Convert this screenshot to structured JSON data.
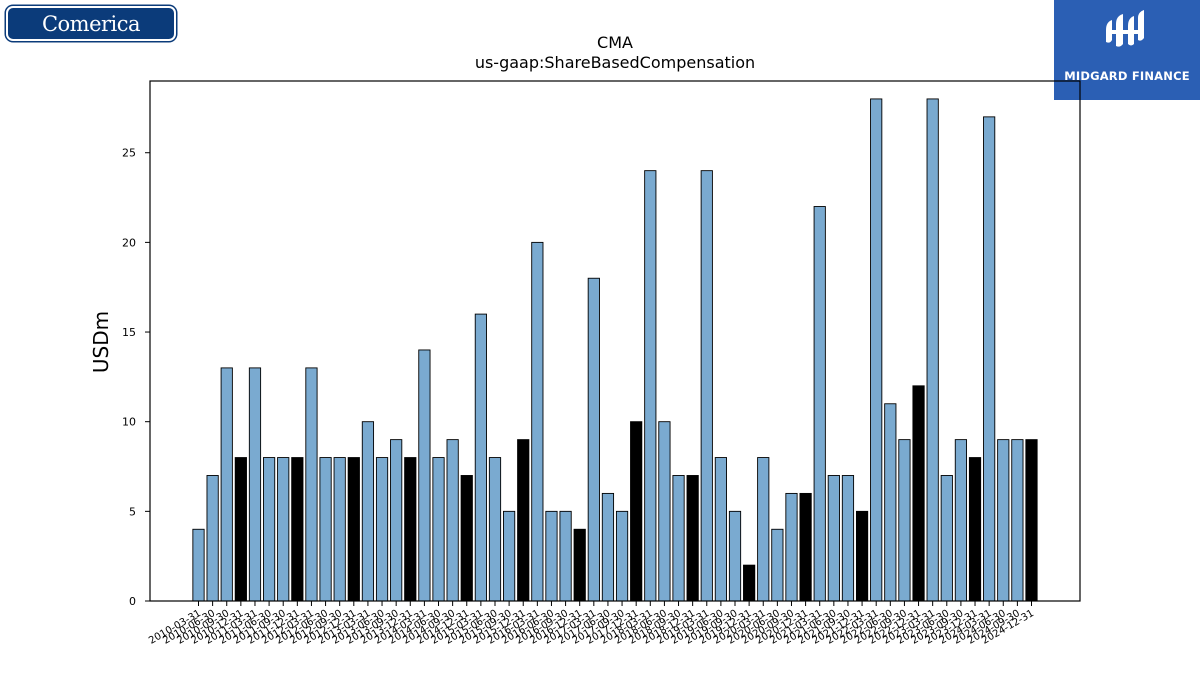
{
  "logos": {
    "left_text": "Comerica",
    "right_text": "MIDGARD FINANCE"
  },
  "colors": {
    "bar_default": "#7aaad0",
    "bar_q4": "#000000",
    "bar_edge": "#000000"
  },
  "chart_data": {
    "type": "bar",
    "title": "CMA",
    "subtitle": "us-gaap:ShareBasedCompensation",
    "xlabel": "",
    "ylabel": "USDm",
    "ylim": [
      0,
      29
    ],
    "yticks": [
      0,
      5,
      10,
      15,
      20,
      25
    ],
    "grid": false,
    "categories": [
      "2010-03-31",
      "2010-06-30",
      "2010-09-30",
      "2010-12-31",
      "2011-03-31",
      "2011-06-30",
      "2011-09-30",
      "2011-12-31",
      "2012-03-31",
      "2012-06-30",
      "2012-09-30",
      "2012-12-31",
      "2013-03-31",
      "2013-06-30",
      "2013-09-30",
      "2013-12-31",
      "2014-03-31",
      "2014-06-30",
      "2014-09-30",
      "2014-12-31",
      "2015-03-31",
      "2015-06-30",
      "2015-09-30",
      "2015-12-31",
      "2016-03-31",
      "2016-06-30",
      "2016-09-30",
      "2016-12-31",
      "2017-03-31",
      "2017-06-30",
      "2017-09-30",
      "2017-12-31",
      "2018-03-31",
      "2018-06-30",
      "2018-09-30",
      "2018-12-31",
      "2019-03-31",
      "2019-06-30",
      "2019-09-30",
      "2019-12-31",
      "2020-03-31",
      "2020-06-30",
      "2020-09-30",
      "2020-12-31",
      "2021-03-31",
      "2021-06-30",
      "2021-09-30",
      "2021-12-31",
      "2022-03-31",
      "2022-06-30",
      "2022-09-30",
      "2022-12-31",
      "2023-03-31",
      "2023-06-30",
      "2023-09-30",
      "2023-12-31",
      "2024-03-31",
      "2024-06-30",
      "2024-09-30",
      "2024-12-31"
    ],
    "values": [
      4,
      7,
      13,
      8,
      13,
      8,
      8,
      8,
      13,
      8,
      8,
      8,
      10,
      8,
      9,
      8,
      14,
      8,
      9,
      7,
      16,
      8,
      5,
      9,
      20,
      5,
      5,
      4,
      18,
      6,
      5,
      10,
      24,
      10,
      7,
      7,
      24,
      8,
      5,
      2,
      8,
      4,
      6,
      6,
      22,
      7,
      7,
      5,
      28,
      11,
      9,
      12,
      28,
      7,
      9,
      8,
      27,
      9,
      9,
      9
    ],
    "highlight": [
      false,
      false,
      false,
      true,
      false,
      false,
      false,
      true,
      false,
      false,
      false,
      true,
      false,
      false,
      false,
      true,
      false,
      false,
      false,
      true,
      false,
      false,
      false,
      true,
      false,
      false,
      false,
      true,
      false,
      false,
      false,
      true,
      false,
      false,
      false,
      true,
      false,
      false,
      false,
      true,
      false,
      false,
      false,
      true,
      false,
      false,
      false,
      true,
      false,
      false,
      false,
      true,
      false,
      false,
      false,
      true,
      false,
      false,
      false,
      true
    ]
  }
}
